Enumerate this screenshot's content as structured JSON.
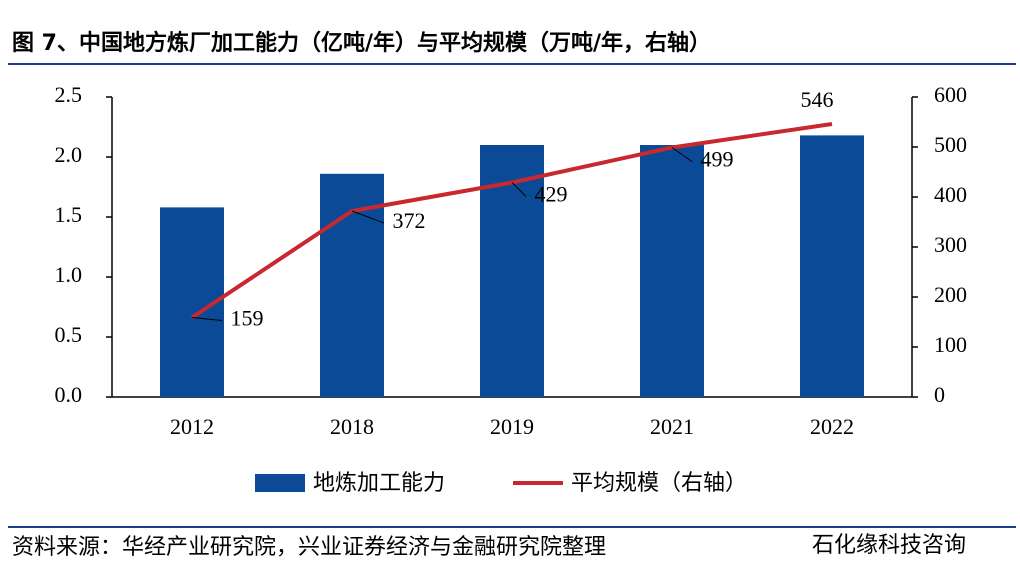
{
  "chart_data": {
    "type": "bar",
    "title": "图 7、中国地方炼厂加工能力（亿吨/年）与平均规模（万吨/年，右轴）",
    "categories": [
      "2012",
      "2018",
      "2019",
      "2021",
      "2022"
    ],
    "series": [
      {
        "name": "地炼加工能力",
        "color": "#0b4a97",
        "values": [
          1.58,
          1.86,
          2.1,
          2.1,
          2.18
        ]
      },
      {
        "name": "平均规模（右轴）",
        "color": "#c8282e",
        "type": "line",
        "axis": "y2",
        "values": [
          159,
          372,
          429,
          499,
          546
        ]
      }
    ],
    "ylim": [
      0,
      2.5
    ],
    "yticks": [
      {
        "value": 0,
        "label": "0.0"
      },
      {
        "value": 0.5,
        "label": "0.5"
      },
      {
        "value": 1,
        "label": "1.0"
      },
      {
        "value": 1.5,
        "label": "1.5"
      },
      {
        "value": 2,
        "label": "2.0"
      },
      {
        "value": 2.5,
        "label": "2.5"
      }
    ],
    "y2lim": [
      0,
      600
    ],
    "y2ticks": [
      0,
      100,
      200,
      300,
      400,
      500,
      600
    ],
    "source": "资料来源：华经产业研究院，兴业证券经济与金融研究院整理",
    "watermark": "石化缘科技咨询"
  }
}
